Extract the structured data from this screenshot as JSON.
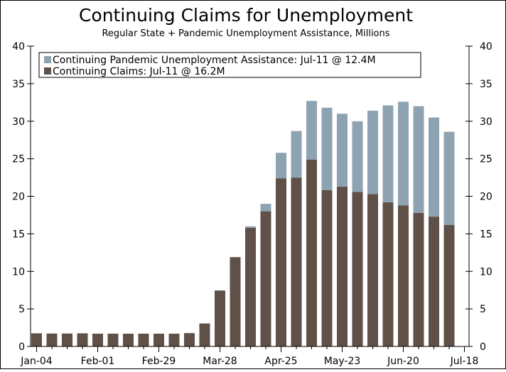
{
  "chart_data": {
    "type": "bar",
    "stacked": true,
    "title": "Continuing Claims for Unemployment",
    "subtitle": "Regular State + Pandemic Unemployment Assistance, Millions",
    "ylim": [
      0,
      40
    ],
    "yticks": [
      0,
      5,
      10,
      15,
      20,
      25,
      30,
      35,
      40
    ],
    "x_tick_labels": [
      "Jan-04",
      "Feb-01",
      "Feb-29",
      "Mar-28",
      "Apr-25",
      "May-23",
      "Jun-20",
      "Jul-18"
    ],
    "legend_position": "top-left",
    "categories": [
      "Jan-04",
      "Jan-11",
      "Jan-18",
      "Jan-25",
      "Feb-01",
      "Feb-08",
      "Feb-15",
      "Feb-22",
      "Feb-29",
      "Mar-07",
      "Mar-14",
      "Mar-21",
      "Mar-28",
      "Apr-04",
      "Apr-11",
      "Apr-18",
      "Apr-25",
      "May-02",
      "May-09",
      "May-16",
      "May-23",
      "May-30",
      "Jun-06",
      "Jun-13",
      "Jun-20",
      "Jun-27",
      "Jul-04",
      "Jul-11"
    ],
    "series": [
      {
        "name": "Continuing Claims: Jul-11 @ 16.2M",
        "color": "#5f5147",
        "values": [
          1.75,
          1.72,
          1.72,
          1.75,
          1.7,
          1.7,
          1.7,
          1.7,
          1.7,
          1.7,
          1.78,
          3.06,
          7.45,
          11.9,
          15.8,
          18.0,
          22.4,
          22.5,
          24.9,
          20.8,
          21.3,
          20.6,
          20.3,
          19.2,
          18.8,
          17.8,
          17.3,
          16.2
        ]
      },
      {
        "name": "Continuing Pandemic Unemployment Assistance: Jul-11 @ 12.4M",
        "color": "#8ea3b2",
        "values": [
          0,
          0,
          0,
          0,
          0,
          0,
          0,
          0,
          0,
          0,
          0,
          0,
          0,
          0,
          0.2,
          1.0,
          3.4,
          6.2,
          7.8,
          11.0,
          9.7,
          9.4,
          11.1,
          12.9,
          13.8,
          14.2,
          13.2,
          12.4
        ]
      }
    ]
  }
}
